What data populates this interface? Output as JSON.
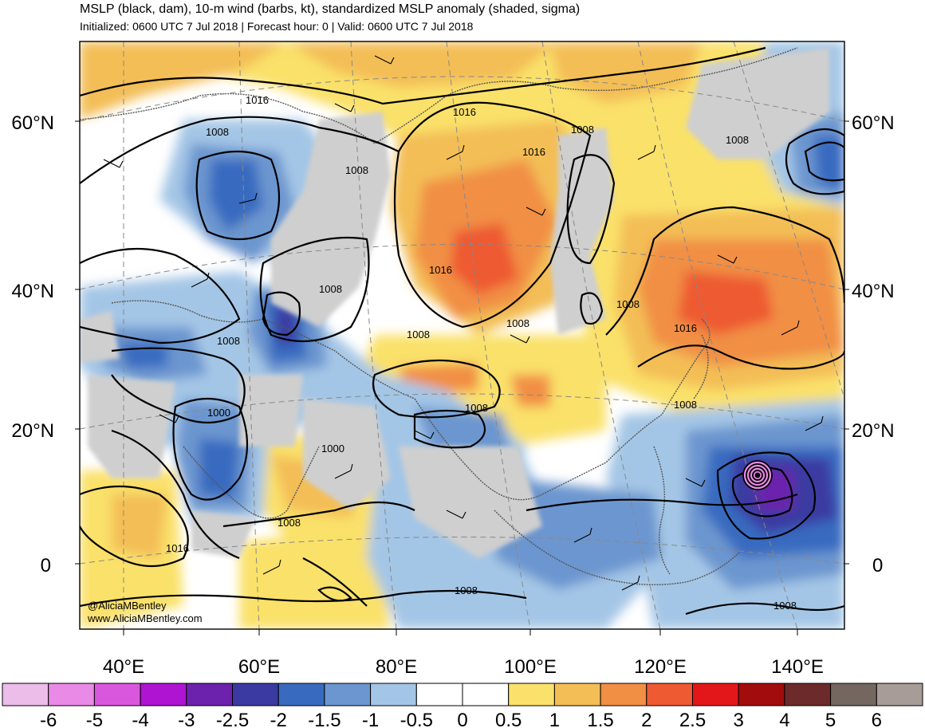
{
  "header": {
    "title": "MSLP (black, dam), 10-m wind (barbs, kt), standardized MSLP anomaly (shaded, sigma)",
    "subtitle": "Initialized: 0600 UTC 7 Jul 2018 | Forecast hour: 0 | Valid: 0600 UTC 7 Jul 2018"
  },
  "map": {
    "lat_labels": [
      "60°N",
      "40°N",
      "20°N",
      "0"
    ],
    "lon_labels": [
      "40°E",
      "60°E",
      "80°E",
      "100°E",
      "120°E",
      "140°E"
    ],
    "contour_labels": [
      "1016",
      "1016",
      "1008",
      "1008",
      "1008",
      "1016",
      "1008",
      "1016",
      "1008",
      "1008",
      "1008",
      "1016",
      "1008",
      "1008",
      "1008",
      "1000",
      "1000",
      "1008",
      "1008",
      "1016",
      "1008",
      "1008"
    ],
    "credit": [
      "@AliciaMBentley",
      "www.AliciaMBentley.com"
    ]
  },
  "colorbar": {
    "colors": [
      "#ecbde9",
      "#e98ae6",
      "#d957dd",
      "#ae14d2",
      "#6c22ad",
      "#3a3aa2",
      "#386bc0",
      "#6c96cf",
      "#a4c6e6",
      "#ffffff",
      "#ffffff",
      "#fae16b",
      "#f3be56",
      "#f18f45",
      "#ee5a32",
      "#e3171a",
      "#a30c0c",
      "#6c2a2a",
      "#736760",
      "#a89c99"
    ],
    "labels": [
      "-6",
      "-5",
      "-4",
      "-3",
      "-2.5",
      "-2",
      "-1.5",
      "-1",
      "-0.5",
      "0",
      "0.5",
      "1",
      "1.5",
      "2",
      "2.5",
      "3",
      "4",
      "5",
      "6"
    ]
  }
}
